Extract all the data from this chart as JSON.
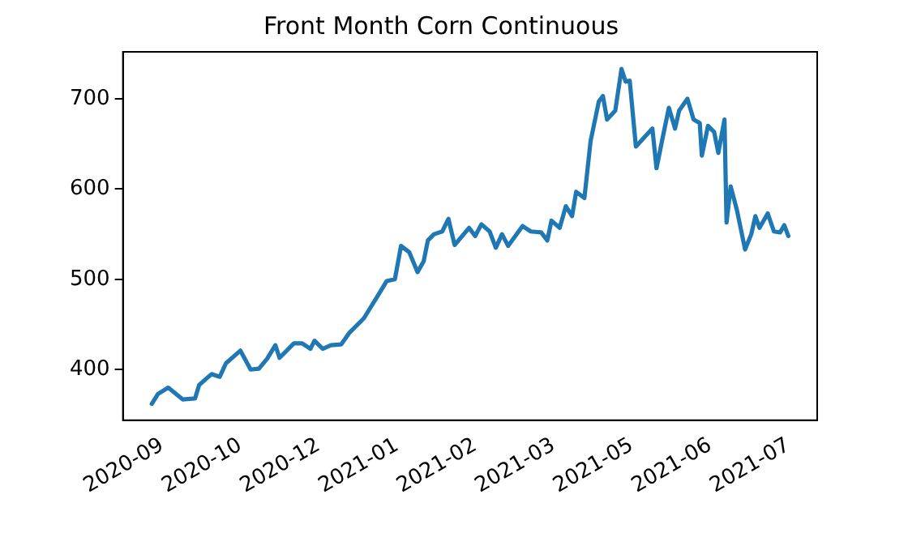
{
  "chart_data": {
    "type": "line",
    "title": "Front Month Corn Continuous",
    "x": [
      "2020-09-15",
      "2020-09-18",
      "2020-09-23",
      "2020-09-30",
      "2020-10-06",
      "2020-10-08",
      "2020-10-14",
      "2020-10-18",
      "2020-10-21",
      "2020-10-28",
      "2020-11-02",
      "2020-11-06",
      "2020-11-10",
      "2020-11-14",
      "2020-11-16",
      "2020-11-23",
      "2020-11-27",
      "2020-12-01",
      "2020-12-03",
      "2020-12-07",
      "2020-12-11",
      "2020-12-16",
      "2020-12-20",
      "2020-12-27",
      "2021-01-03",
      "2021-01-07",
      "2021-01-11",
      "2021-01-14",
      "2021-01-18",
      "2021-01-22",
      "2021-01-25",
      "2021-01-27",
      "2021-01-30",
      "2021-02-03",
      "2021-02-06",
      "2021-02-09",
      "2021-02-16",
      "2021-02-19",
      "2021-02-22",
      "2021-02-26",
      "2021-03-01",
      "2021-03-04",
      "2021-03-07",
      "2021-03-14",
      "2021-03-18",
      "2021-03-23",
      "2021-03-26",
      "2021-03-28",
      "2021-04-01",
      "2021-04-04",
      "2021-04-07",
      "2021-04-09",
      "2021-04-13",
      "2021-04-16",
      "2021-04-20",
      "2021-04-22",
      "2021-04-24",
      "2021-04-28",
      "2021-05-01",
      "2021-05-03",
      "2021-05-05",
      "2021-05-08",
      "2021-05-12",
      "2021-05-16",
      "2021-05-18",
      "2021-05-21",
      "2021-05-24",
      "2021-05-27",
      "2021-05-29",
      "2021-06-02",
      "2021-06-05",
      "2021-06-08",
      "2021-06-09",
      "2021-06-12",
      "2021-06-15",
      "2021-06-17",
      "2021-06-20",
      "2021-06-21",
      "2021-06-23",
      "2021-06-26",
      "2021-06-30",
      "2021-07-03",
      "2021-07-05",
      "2021-07-07",
      "2021-07-11",
      "2021-07-14",
      "2021-07-17",
      "2021-07-19",
      "2021-07-21"
    ],
    "series": [
      {
        "color": "#1f77b4",
        "values": [
          362,
          373,
          380,
          367,
          368,
          383,
          395,
          392,
          407,
          421,
          400,
          401,
          412,
          427,
          413,
          429,
          429,
          423,
          432,
          423,
          427,
          428,
          441,
          457,
          483,
          498,
          500,
          537,
          530,
          508,
          520,
          543,
          550,
          553,
          567,
          538,
          557,
          548,
          561,
          553,
          535,
          550,
          537,
          559,
          553,
          552,
          543,
          565,
          557,
          581,
          570,
          597,
          590,
          653,
          697,
          703,
          677,
          687,
          733,
          719,
          720,
          647,
          657,
          667,
          623,
          657,
          690,
          667,
          687,
          700,
          677,
          673,
          637,
          670,
          663,
          640,
          677,
          563,
          603,
          577,
          533,
          550,
          570,
          557,
          573,
          553,
          552,
          560,
          548
        ]
      }
    ],
    "xlim": [
      "2020-09-01",
      "2021-08-04"
    ],
    "xticks": [
      {
        "value": "2020-09-20",
        "label": "2020-09"
      },
      {
        "value": "2020-10-28",
        "label": "2020-10"
      },
      {
        "value": "2020-12-05",
        "label": "2020-12"
      },
      {
        "value": "2021-01-12",
        "label": "2021-01"
      },
      {
        "value": "2021-02-19",
        "label": "2021-02"
      },
      {
        "value": "2021-03-29",
        "label": "2021-03"
      },
      {
        "value": "2021-05-06",
        "label": "2021-05"
      },
      {
        "value": "2021-06-13",
        "label": "2021-06"
      },
      {
        "value": "2021-07-21",
        "label": "2021-07"
      }
    ],
    "ylim": [
      344,
      752
    ],
    "yticks": [
      400,
      500,
      600,
      700
    ],
    "grid": false,
    "legend": false,
    "marker": "none",
    "line_style": "solid"
  }
}
